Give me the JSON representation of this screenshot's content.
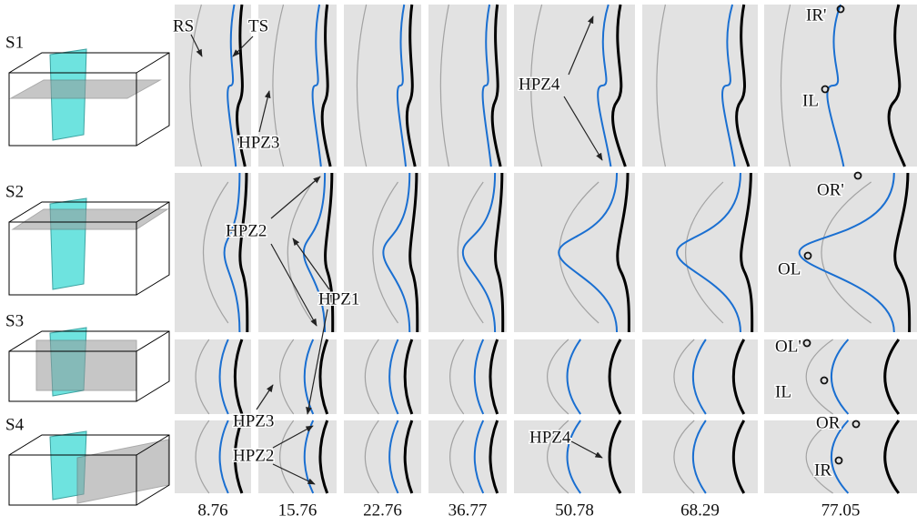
{
  "row_labels": [
    "S1",
    "S2",
    "S3",
    "S4"
  ],
  "column_labels": [
    "8.76",
    "15.76",
    "22.76",
    "36.77",
    "50.78",
    "68.29",
    "77.05"
  ],
  "annotations": {
    "s1": [
      "RS",
      "TS",
      "HPZ3",
      "HPZ4",
      "IR'",
      "IL"
    ],
    "s2": [
      "HPZ2",
      "HPZ1",
      "OR'",
      "OL"
    ],
    "s3": [
      "OL'",
      "IL"
    ],
    "s4": [
      "HPZ3",
      "HPZ2",
      "HPZ4",
      "OR",
      "IR"
    ]
  }
}
